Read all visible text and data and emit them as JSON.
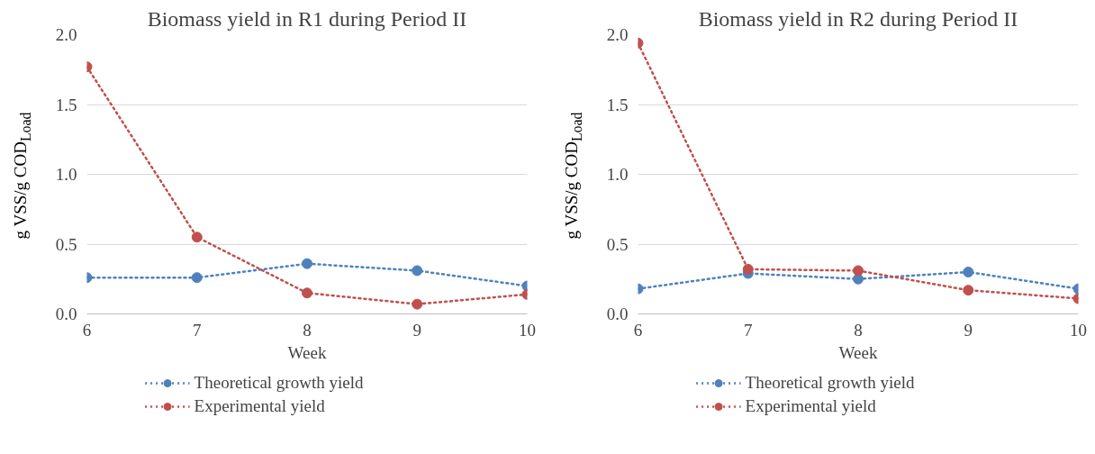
{
  "chart_data": [
    {
      "type": "line",
      "title": "Biomass yield in R1 during Period II",
      "xlabel": "Week",
      "ylabel": "g VSS/g COD$_{Load}$",
      "x": [
        6,
        7,
        8,
        9,
        10
      ],
      "xlim": [
        6,
        10
      ],
      "xticks": [
        6,
        7,
        8,
        9,
        10
      ],
      "ylim": [
        0,
        2
      ],
      "yticks": [
        {
          "value": 0,
          "label": "0.0"
        },
        {
          "value": 0.5,
          "label": "0.5"
        },
        {
          "value": 1,
          "label": "1.0"
        },
        {
          "value": 1.5,
          "label": "1.5"
        },
        {
          "value": 2,
          "label": "2.0"
        }
      ],
      "grid": "y",
      "legend": "bottom",
      "marker": "circle",
      "line_style": "dotted",
      "series": [
        {
          "name": "Theoretical growth yield",
          "color": "#4f81bd",
          "values": [
            0.26,
            0.26,
            0.36,
            0.31,
            0.2
          ]
        },
        {
          "name": "Experimental yield",
          "color": "#c0504d",
          "values": [
            1.77,
            0.55,
            0.15,
            0.07,
            0.14
          ]
        }
      ]
    },
    {
      "type": "line",
      "title": "Biomass yield in R2 during Period II",
      "xlabel": "Week",
      "ylabel": "g VSS/g COD$_{Load}$",
      "x": [
        6,
        7,
        8,
        9,
        10
      ],
      "xlim": [
        6,
        10
      ],
      "xticks": [
        6,
        7,
        8,
        9,
        10
      ],
      "ylim": [
        0,
        2
      ],
      "yticks": [
        {
          "value": 0,
          "label": "0.0"
        },
        {
          "value": 0.5,
          "label": "0.5"
        },
        {
          "value": 1,
          "label": "1.0"
        },
        {
          "value": 1.5,
          "label": "1.5"
        },
        {
          "value": 2,
          "label": "2.0"
        }
      ],
      "grid": "y",
      "legend": "bottom",
      "marker": "circle",
      "line_style": "dotted",
      "series": [
        {
          "name": "Theoretical growth yield",
          "color": "#4f81bd",
          "values": [
            0.18,
            0.29,
            0.25,
            0.3,
            0.18
          ]
        },
        {
          "name": "Experimental yield",
          "color": "#c0504d",
          "values": [
            1.94,
            0.32,
            0.31,
            0.17,
            0.11
          ]
        }
      ]
    }
  ]
}
